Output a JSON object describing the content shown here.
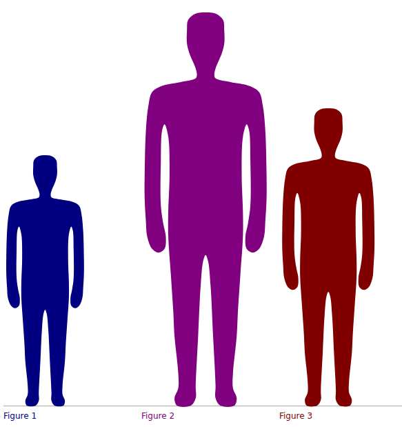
{
  "chart_data": {
    "type": "bar",
    "categories": [
      "Figure 1",
      "Figure 2",
      "Figure 3"
    ],
    "values": [
      363,
      570,
      431
    ],
    "colors": [
      "#000080",
      "#800080",
      "#800000"
    ],
    "ylim": [
      0,
      600
    ],
    "tick_labels": false,
    "marker": "human"
  }
}
